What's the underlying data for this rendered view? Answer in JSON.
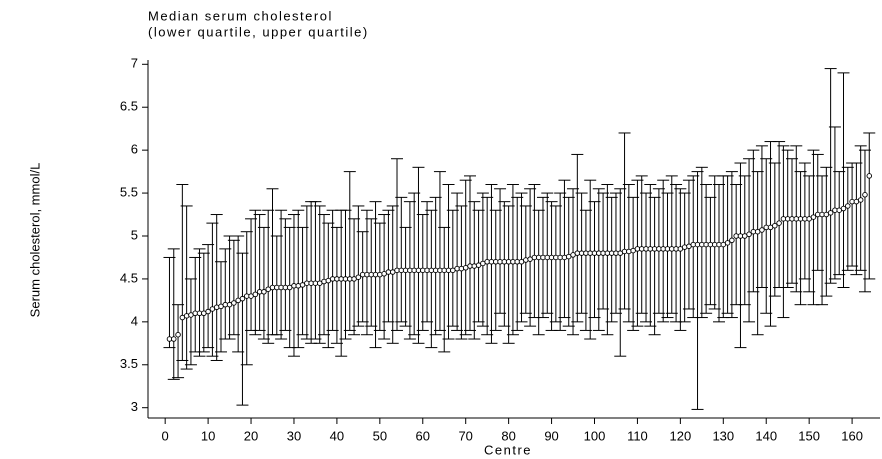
{
  "chart_data": {
    "type": "errorbar",
    "title": "Median serum cholesterol",
    "subtitle": "(lower quartile, upper quartile)",
    "x_label": "Centre",
    "y_label": "Serum cholesterol, mmol/L",
    "xlim": [
      -4,
      166.5
    ],
    "ylim": [
      2.88,
      7.05
    ],
    "xticks": [
      0,
      10,
      20,
      30,
      40,
      50,
      60,
      70,
      80,
      90,
      100,
      110,
      120,
      130,
      140,
      150,
      160
    ],
    "yticks": [
      3,
      3.5,
      4,
      4.5,
      5,
      5.5,
      6,
      6.5,
      7
    ],
    "color": "#000000",
    "x": [
      1,
      2,
      3,
      4,
      5,
      6,
      7,
      8,
      9,
      10,
      11,
      12,
      13,
      14,
      15,
      16,
      17,
      18,
      19,
      20,
      21,
      22,
      23,
      24,
      25,
      26,
      27,
      28,
      29,
      30,
      31,
      32,
      33,
      34,
      35,
      36,
      37,
      38,
      39,
      40,
      41,
      42,
      43,
      44,
      45,
      46,
      47,
      48,
      49,
      50,
      51,
      52,
      53,
      54,
      55,
      56,
      57,
      58,
      59,
      60,
      61,
      62,
      63,
      64,
      65,
      66,
      67,
      68,
      69,
      70,
      71,
      72,
      73,
      74,
      75,
      76,
      77,
      78,
      79,
      80,
      81,
      82,
      83,
      84,
      85,
      86,
      87,
      88,
      89,
      90,
      91,
      92,
      93,
      94,
      95,
      96,
      97,
      98,
      99,
      100,
      101,
      102,
      103,
      104,
      105,
      106,
      107,
      108,
      109,
      110,
      111,
      112,
      113,
      114,
      115,
      116,
      117,
      118,
      119,
      120,
      121,
      122,
      123,
      124,
      125,
      126,
      127,
      128,
      129,
      130,
      131,
      132,
      133,
      134,
      135,
      136,
      137,
      138,
      139,
      140,
      141,
      142,
      143,
      144,
      145,
      146,
      147,
      148,
      149,
      150,
      151,
      152,
      153,
      154,
      155,
      156,
      157,
      158,
      159,
      160,
      161,
      162,
      163,
      164
    ],
    "median": [
      3.8,
      3.8,
      3.85,
      4.05,
      4.07,
      4.08,
      4.1,
      4.1,
      4.1,
      4.12,
      4.15,
      4.17,
      4.18,
      4.2,
      4.2,
      4.22,
      4.25,
      4.27,
      4.3,
      4.3,
      4.32,
      4.35,
      4.35,
      4.38,
      4.4,
      4.4,
      4.4,
      4.4,
      4.4,
      4.42,
      4.42,
      4.43,
      4.45,
      4.45,
      4.45,
      4.45,
      4.47,
      4.48,
      4.5,
      4.5,
      4.5,
      4.5,
      4.5,
      4.5,
      4.52,
      4.55,
      4.55,
      4.55,
      4.55,
      4.55,
      4.56,
      4.58,
      4.58,
      4.6,
      4.6,
      4.6,
      4.6,
      4.6,
      4.6,
      4.6,
      4.6,
      4.6,
      4.6,
      4.6,
      4.6,
      4.6,
      4.6,
      4.62,
      4.62,
      4.63,
      4.65,
      4.65,
      4.66,
      4.68,
      4.7,
      4.7,
      4.7,
      4.7,
      4.7,
      4.7,
      4.7,
      4.7,
      4.7,
      4.72,
      4.73,
      4.75,
      4.75,
      4.75,
      4.75,
      4.75,
      4.75,
      4.75,
      4.75,
      4.76,
      4.78,
      4.8,
      4.8,
      4.8,
      4.8,
      4.8,
      4.8,
      4.8,
      4.8,
      4.8,
      4.8,
      4.8,
      4.82,
      4.82,
      4.83,
      4.85,
      4.85,
      4.85,
      4.85,
      4.85,
      4.85,
      4.85,
      4.85,
      4.85,
      4.85,
      4.85,
      4.87,
      4.88,
      4.9,
      4.9,
      4.9,
      4.9,
      4.9,
      4.9,
      4.9,
      4.9,
      4.92,
      4.95,
      5.0,
      5.0,
      5.0,
      5.02,
      5.05,
      5.05,
      5.07,
      5.1,
      5.1,
      5.12,
      5.15,
      5.2,
      5.2,
      5.2,
      5.2,
      5.2,
      5.2,
      5.2,
      5.22,
      5.25,
      5.25,
      5.25,
      5.27,
      5.3,
      5.3,
      5.32,
      5.35,
      5.4,
      5.4,
      5.42,
      5.48,
      5.7
    ],
    "lower": [
      3.7,
      3.33,
      3.35,
      3.55,
      3.45,
      3.5,
      3.65,
      3.6,
      3.65,
      3.7,
      3.6,
      3.55,
      3.65,
      3.8,
      3.8,
      3.85,
      3.65,
      3.03,
      3.5,
      3.9,
      3.85,
      3.9,
      3.8,
      3.75,
      3.85,
      3.85,
      3.8,
      3.9,
      3.7,
      3.6,
      3.7,
      3.85,
      3.8,
      3.75,
      3.8,
      3.75,
      3.85,
      3.7,
      3.9,
      3.75,
      3.6,
      3.8,
      3.9,
      3.85,
      3.95,
      4.0,
      3.85,
      3.95,
      3.7,
      3.9,
      3.8,
      4.0,
      3.75,
      3.9,
      4.0,
      3.95,
      3.8,
      3.85,
      3.75,
      3.9,
      4.0,
      3.7,
      3.85,
      3.9,
      3.65,
      3.8,
      3.95,
      3.9,
      3.8,
      3.85,
      3.9,
      3.8,
      4.0,
      3.95,
      3.85,
      3.75,
      3.9,
      4.1,
      3.95,
      3.75,
      3.85,
      3.9,
      4.0,
      4.1,
      3.95,
      4.05,
      3.85,
      4.05,
      4.1,
      3.9,
      4.0,
      3.9,
      4.05,
      3.95,
      3.85,
      4.0,
      4.1,
      3.9,
      3.8,
      4.05,
      3.9,
      4.15,
      3.85,
      4.0,
      4.1,
      3.6,
      4.15,
      4.0,
      3.9,
      3.95,
      4.1,
      4.0,
      3.95,
      3.85,
      4.1,
      4.0,
      4.05,
      4.1,
      4.0,
      3.9,
      4.0,
      4.15,
      4.05,
      2.98,
      4.05,
      4.1,
      4.2,
      4.15,
      4.0,
      4.05,
      4.1,
      4.05,
      4.2,
      3.7,
      4.2,
      4.0,
      4.35,
      3.85,
      4.4,
      4.1,
      3.95,
      4.3,
      4.4,
      4.05,
      4.4,
      4.45,
      4.35,
      4.2,
      4.5,
      4.35,
      4.2,
      4.6,
      4.2,
      4.3,
      4.45,
      4.5,
      4.55,
      4.4,
      4.6,
      4.65,
      4.55,
      4.6,
      4.35,
      4.5
    ],
    "upper": [
      4.75,
      4.85,
      4.2,
      5.6,
      5.35,
      4.5,
      4.75,
      4.85,
      4.8,
      4.9,
      5.15,
      5.25,
      4.7,
      4.85,
      5.0,
      4.95,
      5.0,
      4.8,
      5.05,
      5.2,
      5.3,
      5.25,
      5.1,
      5.3,
      5.55,
      5.0,
      5.3,
      5.2,
      5.1,
      5.25,
      5.3,
      5.1,
      5.35,
      5.4,
      5.4,
      5.35,
      5.25,
      5.15,
      5.3,
      5.1,
      5.3,
      5.3,
      5.75,
      5.2,
      5.35,
      5.05,
      5.3,
      5.2,
      5.4,
      5.15,
      5.25,
      5.3,
      5.35,
      5.9,
      5.45,
      5.1,
      5.4,
      5.5,
      5.8,
      5.25,
      5.4,
      5.3,
      5.45,
      5.75,
      5.1,
      5.6,
      5.3,
      5.5,
      5.35,
      5.65,
      5.7,
      5.4,
      5.3,
      5.5,
      5.45,
      5.6,
      5.3,
      5.55,
      5.4,
      5.35,
      5.6,
      5.45,
      5.5,
      5.35,
      5.55,
      5.6,
      5.3,
      5.45,
      5.5,
      5.4,
      5.35,
      5.5,
      5.65,
      5.45,
      5.55,
      5.95,
      5.5,
      5.3,
      5.65,
      5.4,
      5.55,
      5.5,
      5.6,
      5.45,
      5.5,
      5.55,
      6.2,
      5.6,
      5.45,
      5.65,
      5.7,
      5.5,
      5.6,
      5.45,
      5.55,
      5.65,
      5.5,
      5.7,
      5.6,
      5.55,
      5.5,
      5.65,
      5.7,
      5.75,
      5.8,
      5.6,
      5.45,
      5.7,
      5.6,
      5.7,
      5.7,
      5.75,
      5.6,
      5.85,
      5.7,
      5.9,
      6.0,
      5.75,
      6.05,
      5.9,
      6.1,
      5.85,
      6.1,
      6.05,
      6.0,
      5.9,
      6.05,
      5.75,
      5.85,
      5.7,
      6.0,
      5.95,
      5.7,
      5.8,
      6.95,
      6.27,
      5.75,
      6.9,
      5.8,
      5.85,
      5.85,
      6.05,
      6.0,
      6.2
    ]
  }
}
